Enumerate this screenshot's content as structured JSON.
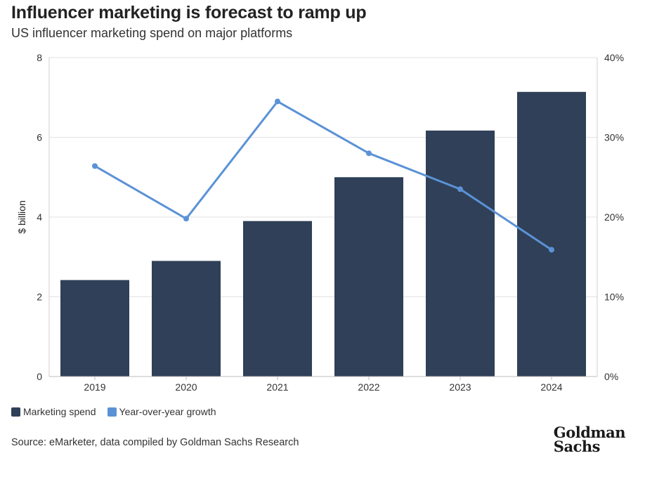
{
  "header": {
    "title": "Influencer marketing is forecast to ramp up",
    "subtitle": "US influencer marketing spend on major platforms"
  },
  "legend": {
    "bar_label": "Marketing spend",
    "line_label": "Year-over-year growth"
  },
  "footer": {
    "source": "Source: eMarketer, data compiled by Goldman Sachs Research",
    "logo_line1": "Goldman",
    "logo_line2": "Sachs"
  },
  "colors": {
    "bar": "#2f4058",
    "line": "#5b92d6",
    "grid": "#e2e2e2"
  },
  "chart_data": {
    "type": "bar",
    "categories": [
      "2019",
      "2020",
      "2021",
      "2022",
      "2023",
      "2024"
    ],
    "ylabel": "$ billion",
    "ylim": [
      0,
      8
    ],
    "yticks": [
      "0",
      "2",
      "4",
      "6",
      "8"
    ],
    "y2lim": [
      0,
      40
    ],
    "y2ticks": [
      "0%",
      "10%",
      "20%",
      "30%",
      "40%"
    ],
    "grid": true,
    "legend_position": "bottom-left",
    "series": [
      {
        "name": "Marketing spend",
        "type": "bar",
        "axis": "left",
        "values": [
          2.42,
          2.9,
          3.9,
          5.0,
          6.17,
          7.14
        ]
      },
      {
        "name": "Year-over-year growth",
        "type": "line",
        "axis": "right",
        "values": [
          26.4,
          19.8,
          34.5,
          28.0,
          23.5,
          15.9
        ]
      }
    ]
  }
}
